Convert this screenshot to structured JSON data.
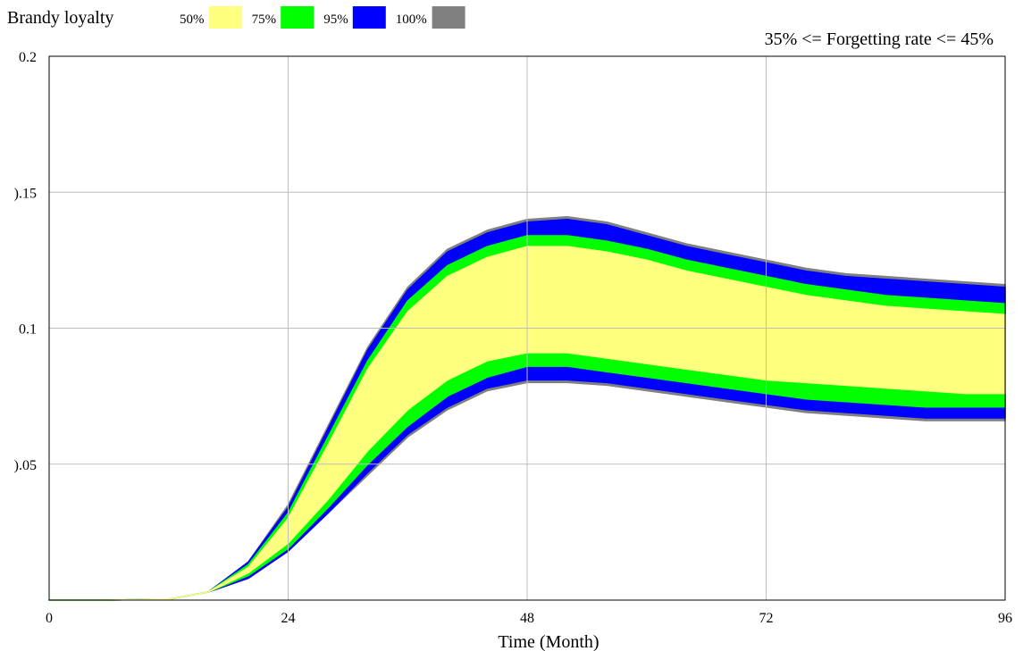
{
  "chart_data": {
    "type": "area",
    "title": "Brandy loyalty",
    "annotation": "35% <= Forgetting rate  <= 45%",
    "xlabel": "Time (Month)",
    "ylabel": "",
    "xlim": [
      0,
      96
    ],
    "ylim": [
      0,
      0.2
    ],
    "x_ticks": [
      0,
      24,
      48,
      72,
      96
    ],
    "x_tick_labels": [
      "0",
      "24",
      "48",
      "72",
      "96"
    ],
    "y_ticks": [
      0.05,
      0.1,
      0.15,
      0.2
    ],
    "y_tick_labels": [
      ").05",
      "0.1",
      ").15",
      "0.2"
    ],
    "grid": true,
    "legend_position": "top-left",
    "x": [
      0,
      6,
      12,
      16,
      20,
      24,
      28,
      32,
      36,
      40,
      44,
      48,
      52,
      56,
      60,
      64,
      68,
      72,
      76,
      80,
      84,
      88,
      92,
      96
    ],
    "bands": [
      {
        "name": "50%",
        "color": "#ffff80",
        "lower": [
          0,
          0,
          0.0003,
          0.003,
          0.01,
          0.021,
          0.037,
          0.055,
          0.07,
          0.081,
          0.088,
          0.091,
          0.091,
          0.089,
          0.087,
          0.085,
          0.083,
          0.081,
          0.08,
          0.079,
          0.078,
          0.077,
          0.076,
          0.076
        ],
        "upper": [
          0,
          0,
          0.0003,
          0.003,
          0.012,
          0.03,
          0.057,
          0.085,
          0.106,
          0.119,
          0.126,
          0.13,
          0.13,
          0.128,
          0.125,
          0.121,
          0.118,
          0.115,
          0.112,
          0.11,
          0.108,
          0.107,
          0.106,
          0.105
        ]
      },
      {
        "name": "75%",
        "color": "#00ff00",
        "lower": [
          0,
          0,
          0.0003,
          0.003,
          0.009,
          0.019,
          0.034,
          0.05,
          0.064,
          0.075,
          0.082,
          0.086,
          0.086,
          0.084,
          0.082,
          0.08,
          0.078,
          0.076,
          0.074,
          0.073,
          0.072,
          0.071,
          0.071,
          0.071
        ],
        "upper": [
          0,
          0,
          0.0003,
          0.003,
          0.013,
          0.032,
          0.06,
          0.088,
          0.11,
          0.123,
          0.13,
          0.134,
          0.134,
          0.132,
          0.129,
          0.125,
          0.122,
          0.119,
          0.116,
          0.114,
          0.112,
          0.111,
          0.11,
          0.109
        ]
      },
      {
        "name": "95%",
        "color": "#0000ff",
        "lower": [
          0,
          0,
          0.0003,
          0.003,
          0.008,
          0.018,
          0.032,
          0.047,
          0.061,
          0.071,
          0.078,
          0.081,
          0.081,
          0.08,
          0.078,
          0.076,
          0.074,
          0.072,
          0.07,
          0.069,
          0.068,
          0.067,
          0.067,
          0.067
        ],
        "upper": [
          0,
          0,
          0.0003,
          0.003,
          0.014,
          0.034,
          0.063,
          0.092,
          0.114,
          0.128,
          0.135,
          0.139,
          0.14,
          0.138,
          0.134,
          0.13,
          0.127,
          0.124,
          0.121,
          0.119,
          0.118,
          0.117,
          0.116,
          0.115
        ]
      },
      {
        "name": "100%",
        "color": "#808080",
        "lower": [
          0,
          0,
          0.0003,
          0.003,
          0.008,
          0.018,
          0.032,
          0.046,
          0.06,
          0.07,
          0.077,
          0.08,
          0.08,
          0.079,
          0.077,
          0.075,
          0.073,
          0.071,
          0.069,
          0.068,
          0.067,
          0.066,
          0.066,
          0.066
        ],
        "upper": [
          0,
          0,
          0.0003,
          0.003,
          0.014,
          0.035,
          0.064,
          0.093,
          0.115,
          0.129,
          0.136,
          0.14,
          0.141,
          0.139,
          0.135,
          0.131,
          0.128,
          0.125,
          0.122,
          0.12,
          0.119,
          0.118,
          0.117,
          0.116
        ]
      }
    ]
  }
}
